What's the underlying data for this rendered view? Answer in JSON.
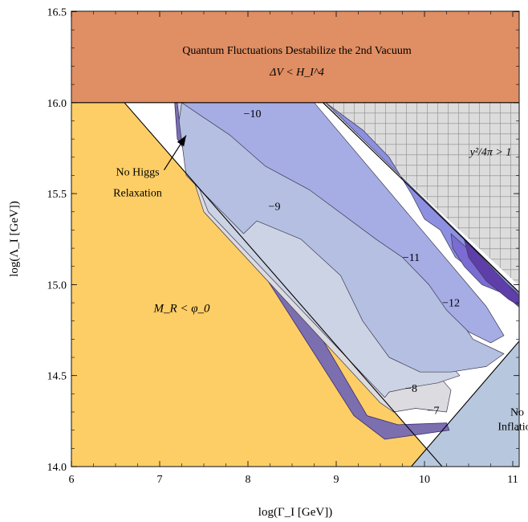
{
  "chart_data": {
    "type": "area",
    "xlabel": "log(Γ_I [GeV])",
    "ylabel": "log(Λ_I [GeV])",
    "xlim": [
      6,
      11.5
    ],
    "ylim": [
      14.0,
      16.55
    ],
    "xticks": [
      "6",
      "7",
      "8",
      "9",
      "10",
      "11"
    ],
    "yticks": [
      "14.0",
      "14.5",
      "15.0",
      "15.5",
      "16.0",
      "16.5"
    ],
    "regions": [
      {
        "name": "top-band",
        "color": "#e08e63",
        "label_line1": "Quantum Fluctuations Destabilize the 2nd Vacuum",
        "label_line2": "ΔV < H_I^4",
        "polygon": [
          [
            6,
            16.0
          ],
          [
            11.5,
            16.0
          ],
          [
            11.5,
            16.55
          ],
          [
            6,
            16.55
          ]
        ]
      },
      {
        "name": "left-region",
        "color": "#fdce66",
        "label": "M_R < φ_0",
        "polygon": [
          [
            6,
            14.0
          ],
          [
            10.2,
            14.0
          ],
          [
            6.6,
            16.0
          ],
          [
            6,
            16.0
          ]
        ]
      },
      {
        "name": "bottom-right-region",
        "color": "#b7c8de",
        "label_line1": "No",
        "label_line2": "Inflation",
        "polygon": [
          [
            9.85,
            14.0
          ],
          [
            11.5,
            14.0
          ],
          [
            11.5,
            14.93
          ]
        ]
      },
      {
        "name": "grid-region",
        "color": "#dcdcdc",
        "label": "y²/4π > 1",
        "polygon": [
          [
            8.85,
            16.0
          ],
          [
            11.5,
            16.0
          ],
          [
            11.5,
            14.8
          ]
        ]
      }
    ],
    "contours": [
      {
        "level": -7,
        "label": "−7",
        "color": "#dcdbe0",
        "polygon": [
          [
            7.2,
            16.0
          ],
          [
            7.55,
            16.0
          ],
          [
            10.3,
            14.42
          ],
          [
            10.25,
            14.3
          ],
          [
            9.9,
            14.32
          ],
          [
            9.65,
            14.3
          ],
          [
            9.5,
            14.35
          ],
          [
            7.5,
            15.4
          ],
          [
            7.25,
            15.78
          ]
        ]
      },
      {
        "level": -8,
        "label": "−8",
        "color": "#ccd3e4",
        "polygon": [
          [
            7.2,
            16.0
          ],
          [
            7.6,
            16.0
          ],
          [
            10.4,
            14.5
          ],
          [
            10.15,
            14.46
          ],
          [
            9.9,
            14.44
          ],
          [
            9.6,
            14.41
          ],
          [
            9.55,
            14.38
          ],
          [
            7.55,
            15.4
          ],
          [
            7.25,
            15.78
          ]
        ]
      },
      {
        "level": -9,
        "label": "−9",
        "color": "#b4bfe1",
        "polygon": [
          [
            7.25,
            16.0
          ],
          [
            8.15,
            16.0
          ],
          [
            10.05,
            15.0
          ],
          [
            10.3,
            14.88
          ],
          [
            10.55,
            14.7
          ],
          [
            10.9,
            14.62
          ],
          [
            10.7,
            14.55
          ],
          [
            10.3,
            14.52
          ],
          [
            9.95,
            14.52
          ],
          [
            9.6,
            14.6
          ],
          [
            9.3,
            14.8
          ],
          [
            9.05,
            15.05
          ],
          [
            8.6,
            15.25
          ],
          [
            8.1,
            15.35
          ],
          [
            7.95,
            15.28
          ],
          [
            7.3,
            15.6
          ],
          [
            7.22,
            15.9
          ]
        ]
      },
      {
        "level": -10,
        "label": "−10",
        "color": "#a6ace4",
        "polygon": [
          [
            7.25,
            16.0
          ],
          [
            8.75,
            16.0
          ],
          [
            10.7,
            14.88
          ],
          [
            10.9,
            14.72
          ],
          [
            10.75,
            14.68
          ],
          [
            10.5,
            14.74
          ],
          [
            10.25,
            14.86
          ],
          [
            10.05,
            15.0
          ],
          [
            9.75,
            15.15
          ],
          [
            9.45,
            15.25
          ],
          [
            8.7,
            15.52
          ],
          [
            8.2,
            15.65
          ],
          [
            7.8,
            15.82
          ],
          [
            7.4,
            15.95
          ]
        ]
      },
      {
        "level": -11,
        "label": "−11",
        "color": "#8d8fe0",
        "polygon": [
          [
            8.88,
            16.0
          ],
          [
            11.45,
            14.78
          ],
          [
            11.2,
            14.82
          ],
          [
            10.9,
            14.95
          ],
          [
            10.62,
            15.05
          ],
          [
            10.35,
            15.15
          ],
          [
            10.18,
            15.3
          ],
          [
            10.0,
            15.36
          ],
          [
            9.85,
            15.5
          ],
          [
            9.6,
            15.7
          ],
          [
            9.3,
            15.85
          ]
        ]
      },
      {
        "level": -12,
        "label": "−12",
        "color": "#7a6cd2",
        "polygon": [
          [
            10.3,
            15.28
          ],
          [
            11.45,
            14.78
          ],
          [
            11.2,
            14.85
          ],
          [
            10.9,
            14.95
          ],
          [
            10.65,
            15.0
          ],
          [
            10.45,
            15.1
          ],
          [
            10.32,
            15.2
          ]
        ]
      },
      {
        "level": -13,
        "label": "",
        "color": "#5e3ea8",
        "polygon": [
          [
            10.45,
            15.25
          ],
          [
            11.3,
            14.82
          ],
          [
            11.15,
            14.86
          ],
          [
            10.95,
            14.92
          ],
          [
            10.7,
            15.02
          ],
          [
            10.5,
            15.15
          ]
        ]
      }
    ],
    "contour_labels": [
      {
        "text": "−10",
        "x": 8.05,
        "y": 15.92
      },
      {
        "text": "−9",
        "x": 8.3,
        "y": 15.41
      },
      {
        "text": "−11",
        "x": 9.85,
        "y": 15.13
      },
      {
        "text": "−12",
        "x": 10.3,
        "y": 14.88
      },
      {
        "text": "−8",
        "x": 9.85,
        "y": 14.41
      },
      {
        "text": "−7",
        "x": 10.1,
        "y": 14.29
      }
    ],
    "annotations": [
      {
        "text_line1": "No Higgs",
        "text_line2": "Relaxation",
        "x": 6.75,
        "y": 15.6,
        "arrow_from": [
          7.05,
          15.63
        ],
        "arrow_to": [
          7.3,
          15.82
        ]
      }
    ],
    "boundary_lines": [
      [
        [
          6.6,
          16.0
        ],
        [
          10.2,
          14.0
        ]
      ],
      [
        [
          8.85,
          16.0
        ],
        [
          11.45,
          14.78
        ]
      ],
      [
        [
          9.85,
          14.0
        ],
        [
          11.5,
          14.93
        ]
      ]
    ]
  }
}
